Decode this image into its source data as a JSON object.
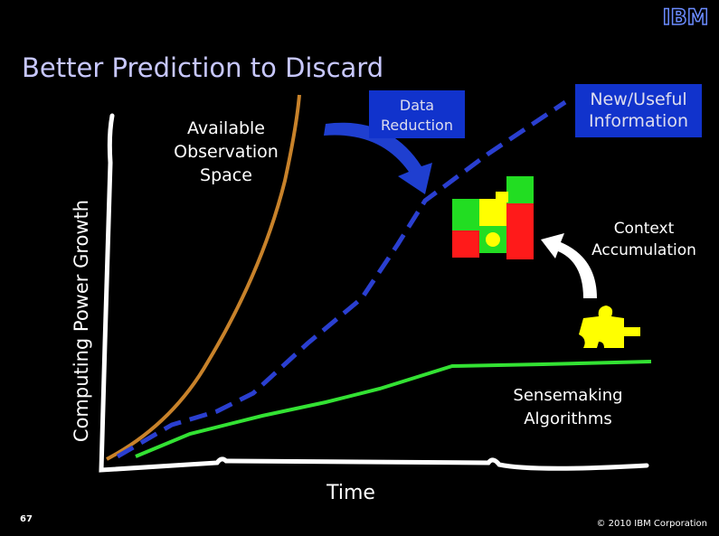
{
  "logo": "IBM",
  "title": "Better Prediction to Discard",
  "labels": {
    "observation_space": [
      "Available",
      "Observation",
      "Space"
    ],
    "data_reduction": [
      "Data",
      "Reduction"
    ],
    "new_useful_information": [
      "New/Useful",
      "Information"
    ],
    "context_accumulation": [
      "Context",
      "Accumulation"
    ],
    "sensemaking_algorithms": [
      "Sensemaking",
      "Algorithms"
    ],
    "y_axis": "Computing Power Growth",
    "x_axis": "Time"
  },
  "footer": {
    "page_number": "67",
    "copyright": "© 2010 IBM Corporation"
  }
}
